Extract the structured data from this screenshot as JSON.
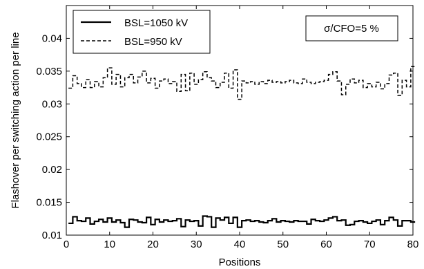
{
  "chart_data": {
    "type": "line",
    "step": true,
    "xlabel": "Positions",
    "ylabel": "Flashover per switching action per line",
    "xlim": [
      0,
      80
    ],
    "ylim": [
      0.01,
      0.045
    ],
    "xticks": [
      0,
      10,
      20,
      30,
      40,
      50,
      60,
      70,
      80
    ],
    "xtick_labels": [
      "0",
      "10",
      "20",
      "30",
      "40",
      "50",
      "60",
      "70",
      "80"
    ],
    "yticks": [
      0.01,
      0.015,
      0.02,
      0.025,
      0.03,
      0.035,
      0.04
    ],
    "ytick_labels": [
      "0.01",
      "0.015",
      "0.02",
      "0.025",
      "0.03",
      "0.035",
      "0.04"
    ],
    "grid": false,
    "legend_position": "top-left",
    "annotation": "σ/CFO=5 %",
    "series": [
      {
        "name": "BSL=1050 kV",
        "style": "solid",
        "color": "#000000",
        "x": [
          1,
          2,
          3,
          4,
          5,
          6,
          7,
          8,
          9,
          10,
          11,
          12,
          13,
          14,
          15,
          16,
          17,
          18,
          19,
          20,
          21,
          22,
          23,
          24,
          25,
          26,
          27,
          28,
          29,
          30,
          31,
          32,
          33,
          34,
          35,
          36,
          37,
          38,
          39,
          40,
          41,
          42,
          43,
          44,
          45,
          46,
          47,
          48,
          49,
          50,
          51,
          52,
          53,
          54,
          55,
          56,
          57,
          58,
          59,
          60,
          61,
          62,
          63,
          64,
          65,
          66,
          67,
          68,
          69,
          70,
          71,
          72,
          73,
          74,
          75,
          76,
          77,
          78,
          79,
          80
        ],
        "values": [
          0.0118,
          0.0128,
          0.0122,
          0.0121,
          0.0126,
          0.0117,
          0.0121,
          0.0124,
          0.012,
          0.0126,
          0.012,
          0.0123,
          0.0119,
          0.0112,
          0.0124,
          0.0123,
          0.012,
          0.0119,
          0.0127,
          0.0116,
          0.0124,
          0.012,
          0.0123,
          0.0121,
          0.0122,
          0.0125,
          0.0113,
          0.0123,
          0.0121,
          0.0122,
          0.0114,
          0.0129,
          0.0128,
          0.0112,
          0.0126,
          0.0123,
          0.0127,
          0.0118,
          0.0127,
          0.0112,
          0.0122,
          0.0123,
          0.0121,
          0.0122,
          0.012,
          0.0119,
          0.0122,
          0.0125,
          0.012,
          0.0122,
          0.0121,
          0.012,
          0.0122,
          0.0121,
          0.0121,
          0.0117,
          0.0124,
          0.0122,
          0.0121,
          0.0123,
          0.0126,
          0.0128,
          0.0122,
          0.0123,
          0.0115,
          0.0116,
          0.0121,
          0.0122,
          0.012,
          0.0118,
          0.0121,
          0.0123,
          0.0116,
          0.0122,
          0.0127,
          0.0123,
          0.0114,
          0.0122,
          0.0122,
          0.012
        ]
      },
      {
        "name": "BSL=950 kV",
        "style": "dashed",
        "color": "#000000",
        "x": [
          1,
          2,
          3,
          4,
          5,
          6,
          7,
          8,
          9,
          10,
          11,
          12,
          13,
          14,
          15,
          16,
          17,
          18,
          19,
          20,
          21,
          22,
          23,
          24,
          25,
          26,
          27,
          28,
          29,
          30,
          31,
          32,
          33,
          34,
          35,
          36,
          37,
          38,
          39,
          40,
          41,
          42,
          43,
          44,
          45,
          46,
          47,
          48,
          49,
          50,
          51,
          52,
          53,
          54,
          55,
          56,
          57,
          58,
          59,
          60,
          61,
          62,
          63,
          64,
          65,
          66,
          67,
          68,
          69,
          70,
          71,
          72,
          73,
          74,
          75,
          76,
          77,
          78,
          79,
          80
        ],
        "values": [
          0.0324,
          0.0343,
          0.0331,
          0.0325,
          0.0337,
          0.0325,
          0.0334,
          0.0326,
          0.034,
          0.0355,
          0.033,
          0.0345,
          0.0326,
          0.034,
          0.0345,
          0.0332,
          0.0341,
          0.035,
          0.0332,
          0.0339,
          0.0324,
          0.0335,
          0.0338,
          0.0331,
          0.0334,
          0.0319,
          0.0345,
          0.032,
          0.0347,
          0.033,
          0.0337,
          0.0349,
          0.034,
          0.0335,
          0.0325,
          0.0333,
          0.0347,
          0.0324,
          0.0352,
          0.0307,
          0.0335,
          0.0332,
          0.0334,
          0.033,
          0.0334,
          0.0331,
          0.0336,
          0.0333,
          0.0334,
          0.0332,
          0.0334,
          0.0336,
          0.0332,
          0.0331,
          0.0338,
          0.0333,
          0.0331,
          0.0333,
          0.0334,
          0.0336,
          0.0345,
          0.0349,
          0.0335,
          0.0314,
          0.033,
          0.0338,
          0.0332,
          0.0336,
          0.0325,
          0.0331,
          0.0326,
          0.0333,
          0.0323,
          0.0331,
          0.0344,
          0.0347,
          0.0313,
          0.0336,
          0.0326,
          0.0357
        ]
      }
    ]
  }
}
